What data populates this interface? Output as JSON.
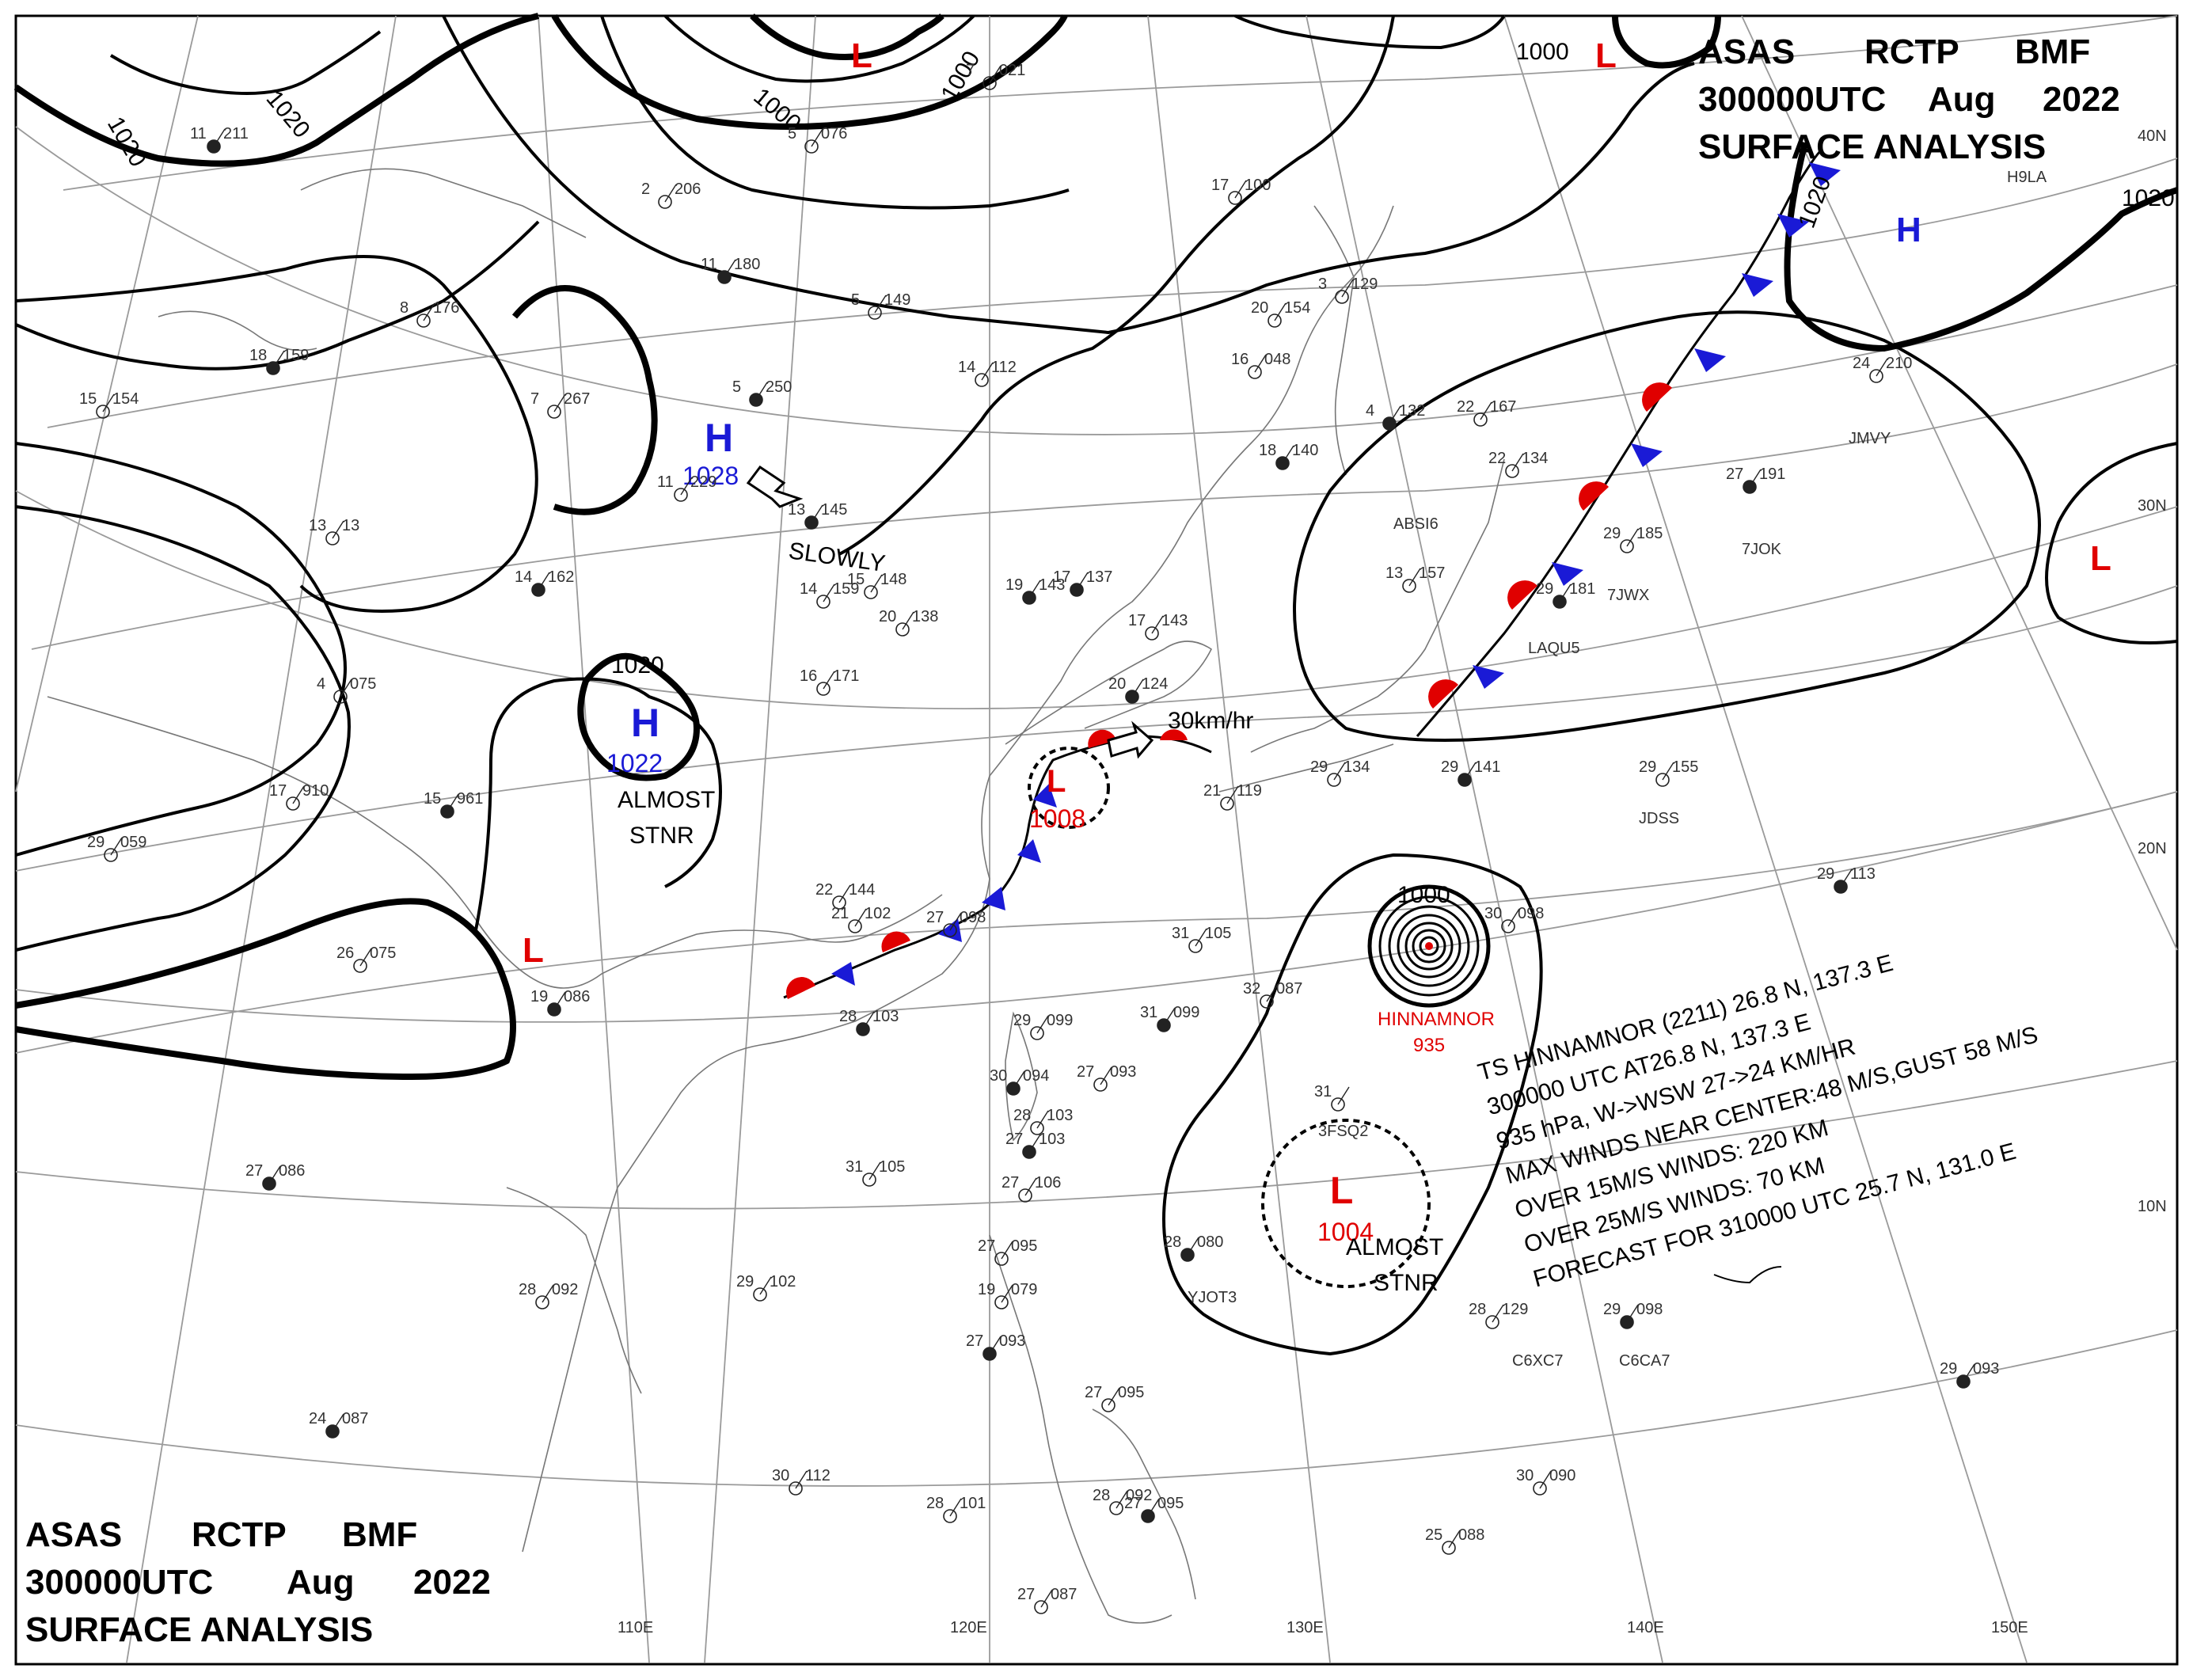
{
  "header": {
    "line1": [
      "ASAS",
      "RCTP",
      "BMF"
    ],
    "line2": [
      "300000UTC",
      "Aug",
      "2022"
    ],
    "line3": "SURFACE ANALYSIS"
  },
  "axes": {
    "longitudes": [
      "110E",
      "120E",
      "130E",
      "140E",
      "150E"
    ],
    "latitudes": [
      "40N",
      "30N",
      "20N",
      "10N"
    ]
  },
  "isobar_labels": [
    "1020",
    "1020",
    "1000",
    "1000",
    "1000",
    "1020",
    "1020",
    "1020",
    "1000"
  ],
  "pressure_systems": [
    {
      "type": "H",
      "value": "1028"
    },
    {
      "type": "H",
      "value": "1022"
    },
    {
      "type": "H",
      "value": ""
    },
    {
      "type": "L",
      "value": ""
    },
    {
      "type": "L",
      "value": ""
    },
    {
      "type": "L",
      "value": "1008"
    },
    {
      "type": "L",
      "value": ""
    },
    {
      "type": "L",
      "value": "1004"
    }
  ],
  "annotations": {
    "slowly": "SLOWLY",
    "almost1": "ALMOST",
    "stnr1": "STNR",
    "almost2": "ALMOST",
    "stnr2": "STNR",
    "speed": "30km/hr"
  },
  "typhoon": {
    "name": "HINNAMNOR",
    "pressure": "935",
    "info": [
      "TS HINNAMNOR  (2211)  26.8 N, 137.3 E",
      "300000 UTC  AT26.8 N, 137.3 E",
      "935 hPa, W->WSW  27->24 KM/HR",
      "MAX WINDS NEAR CENTER:48 M/S,GUST 58 M/S",
      "OVER 15M/S WINDS: 220 KM",
      "OVER 25M/S WINDS: 70 KM",
      "FORECAST FOR 310000 UTC 25.7 N, 131.0 E"
    ]
  },
  "ship_ids": [
    "ABSI6",
    "7JWX",
    "7JOK",
    "JMVY",
    "LAQU5",
    "JDSS",
    "C6XC7",
    "C6CA7",
    "3FSQ2",
    "H9LA",
    "YJOT3"
  ],
  "stations": [
    {
      "t": "11",
      "p": "211"
    },
    {
      "t": "2",
      "p": "206"
    },
    {
      "t": "8",
      "p": "176"
    },
    {
      "t": "18",
      "p": "159"
    },
    {
      "t": "15",
      "p": "154"
    },
    {
      "t": "7",
      "p": "267"
    },
    {
      "t": "5",
      "p": "250"
    },
    {
      "t": "11",
      "p": "229"
    },
    {
      "t": "13",
      "p": "13"
    },
    {
      "t": "14",
      "p": "162"
    },
    {
      "t": "4",
      "p": "075"
    },
    {
      "t": "17",
      "p": "910"
    },
    {
      "t": "15",
      "p": "961"
    },
    {
      "t": "29",
      "p": "059"
    },
    {
      "t": "26",
      "p": "075"
    },
    {
      "t": "19",
      "p": "086"
    },
    {
      "t": "5",
      "p": "076"
    },
    {
      "t": "7",
      "p": "021"
    },
    {
      "t": "11",
      "p": "180"
    },
    {
      "t": "5",
      "p": "149"
    },
    {
      "t": "14",
      "p": "112"
    },
    {
      "t": "13",
      "p": "145"
    },
    {
      "t": "14",
      "p": "159"
    },
    {
      "t": "15",
      "p": "148"
    },
    {
      "t": "19",
      "p": "143"
    },
    {
      "t": "20",
      "p": "138"
    },
    {
      "t": "16",
      "p": "171"
    },
    {
      "t": "17",
      "p": "137"
    },
    {
      "t": "17",
      "p": "100"
    },
    {
      "t": "16",
      "p": "048"
    },
    {
      "t": "18",
      "p": "140"
    },
    {
      "t": "20",
      "p": "154"
    },
    {
      "t": "3",
      "p": "129"
    },
    {
      "t": "4",
      "p": "132"
    },
    {
      "t": "22",
      "p": "167"
    },
    {
      "t": "22",
      "p": "134"
    },
    {
      "t": "27",
      "p": "191"
    },
    {
      "t": "24",
      "p": "210"
    },
    {
      "t": "29",
      "p": "185"
    },
    {
      "t": "29",
      "p": "181"
    },
    {
      "t": "13",
      "p": "157"
    },
    {
      "t": "17",
      "p": "143"
    },
    {
      "t": "20",
      "p": "124"
    },
    {
      "t": "21",
      "p": "119"
    },
    {
      "t": "29",
      "p": "134"
    },
    {
      "t": "29",
      "p": "141"
    },
    {
      "t": "29",
      "p": "155"
    },
    {
      "t": "30",
      "p": "098"
    },
    {
      "t": "29",
      "p": "113"
    },
    {
      "t": "22",
      "p": "144"
    },
    {
      "t": "21",
      "p": "102"
    },
    {
      "t": "28",
      "p": "103"
    },
    {
      "t": "27",
      "p": "098"
    },
    {
      "t": "31",
      "p": "105"
    },
    {
      "t": "31",
      "p": "099"
    },
    {
      "t": "32",
      "p": "087"
    },
    {
      "t": "29",
      "p": "099"
    },
    {
      "t": "30",
      "p": "094"
    },
    {
      "t": "27",
      "p": "093"
    },
    {
      "t": "28",
      "p": "103"
    },
    {
      "t": "27",
      "p": "103"
    },
    {
      "t": "27",
      "p": "106"
    },
    {
      "t": "31",
      "p": "105"
    },
    {
      "t": "27",
      "p": "086"
    },
    {
      "t": "29",
      "p": "102"
    },
    {
      "t": "28",
      "p": "092"
    },
    {
      "t": "24",
      "p": "087"
    },
    {
      "t": "30",
      "p": "112"
    },
    {
      "t": "28",
      "p": "101"
    },
    {
      "t": "28",
      "p": "080"
    },
    {
      "t": "27",
      "p": "095"
    },
    {
      "t": "19",
      "p": "079"
    },
    {
      "t": "27",
      "p": "093"
    },
    {
      "t": "27",
      "p": "095"
    },
    {
      "t": "28",
      "p": "092"
    },
    {
      "t": "27",
      "p": "095"
    },
    {
      "t": "27",
      "p": "087"
    },
    {
      "t": "28",
      "p": "129"
    },
    {
      "t": "29",
      "p": "098"
    },
    {
      "t": "30",
      "p": "090"
    },
    {
      "t": "25",
      "p": "088"
    },
    {
      "t": "29",
      "p": "093"
    },
    {
      "t": "31",
      "p": ""
    }
  ],
  "colors": {
    "high": "#1a1ad6",
    "low": "#e00000",
    "isobar": "#000000",
    "grid": "#9a9a9a"
  }
}
